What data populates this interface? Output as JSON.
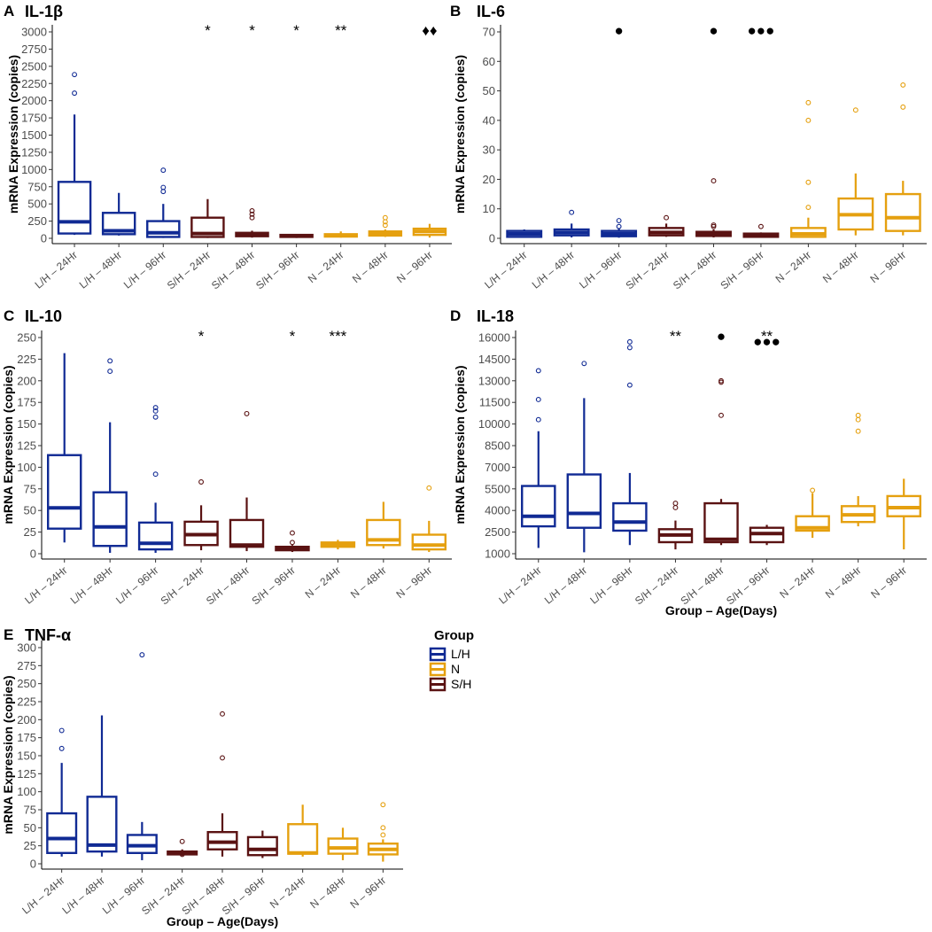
{
  "colors": {
    "L/H": "#102a94",
    "N": "#e5a00f",
    "S/H": "#5a1212"
  },
  "legend": {
    "title": "Group",
    "items": [
      {
        "label": "L/H",
        "group": "L/H"
      },
      {
        "label": "N",
        "group": "N"
      },
      {
        "label": "S/H",
        "group": "S/H"
      }
    ]
  },
  "chart_data": [
    {
      "type": "box",
      "letter": "A",
      "title": "IL-1β",
      "ylabel": "mRNA Expression (copies)",
      "xlabel": "",
      "ylim": [
        0,
        3000
      ],
      "yticks": [
        0,
        250,
        500,
        750,
        1000,
        1250,
        1500,
        1750,
        2000,
        2250,
        2500,
        2750,
        3000
      ],
      "categories": [
        "L/H – 24Hr",
        "L/H – 48Hr",
        "L/H – 96Hr",
        "S/H – 24Hr",
        "S/H – 48Hr",
        "S/H – 96Hr",
        "N – 24Hr",
        "N – 48Hr",
        "N – 96Hr"
      ],
      "groups": [
        "L/H",
        "L/H",
        "L/H",
        "S/H",
        "S/H",
        "S/H",
        "N",
        "N",
        "N"
      ],
      "boxes": [
        {
          "min": 50,
          "q1": 70,
          "median": 240,
          "q3": 820,
          "max": 1800,
          "outliers": [
            2110,
            2380
          ]
        },
        {
          "min": 40,
          "q1": 60,
          "median": 110,
          "q3": 370,
          "max": 660,
          "outliers": []
        },
        {
          "min": 5,
          "q1": 20,
          "median": 80,
          "q3": 250,
          "max": 500,
          "outliers": [
            680,
            740,
            990
          ]
        },
        {
          "min": 5,
          "q1": 20,
          "median": 70,
          "q3": 300,
          "max": 570,
          "outliers": []
        },
        {
          "min": 10,
          "q1": 30,
          "median": 50,
          "q3": 80,
          "max": 110,
          "outliers": [
            300,
            350,
            400
          ]
        },
        {
          "min": 5,
          "q1": 20,
          "median": 35,
          "q3": 50,
          "max": 60,
          "outliers": []
        },
        {
          "min": 10,
          "q1": 25,
          "median": 40,
          "q3": 60,
          "max": 100,
          "outliers": []
        },
        {
          "min": 20,
          "q1": 40,
          "median": 70,
          "q3": 100,
          "max": 130,
          "outliers": [
            190,
            240,
            300
          ]
        },
        {
          "min": 10,
          "q1": 50,
          "median": 100,
          "q3": 140,
          "max": 210,
          "outliers": []
        }
      ],
      "annotations": [
        {
          "index": 3,
          "text": "*"
        },
        {
          "index": 4,
          "text": "*"
        },
        {
          "index": 5,
          "text": "*"
        },
        {
          "index": 6,
          "text": "**"
        },
        {
          "index": 8,
          "text": "♦♦"
        }
      ]
    },
    {
      "type": "box",
      "letter": "B",
      "title": "IL-6",
      "ylabel": "mRNA Expression (copies)",
      "xlabel": "",
      "ylim": [
        0,
        70
      ],
      "yticks": [
        0,
        10,
        20,
        30,
        40,
        50,
        60,
        70
      ],
      "categories": [
        "L/H – 24Hr",
        "L/H – 48Hr",
        "L/H – 96Hr",
        "S/H – 24Hr",
        "S/H – 48Hr",
        "S/H – 96Hr",
        "N – 24Hr",
        "N – 48Hr",
        "N – 96Hr"
      ],
      "groups": [
        "L/H",
        "L/H",
        "L/H",
        "S/H",
        "S/H",
        "S/H",
        "N",
        "N",
        "N"
      ],
      "boxes": [
        {
          "min": 0.2,
          "q1": 0.5,
          "median": 1.5,
          "q3": 2.5,
          "max": 3,
          "outliers": []
        },
        {
          "min": 0.3,
          "q1": 1,
          "median": 2,
          "q3": 3,
          "max": 5,
          "outliers": [
            8.8
          ]
        },
        {
          "min": 0.2,
          "q1": 0.7,
          "median": 1.5,
          "q3": 2.5,
          "max": 3.5,
          "outliers": [
            4,
            6
          ]
        },
        {
          "min": 0.5,
          "q1": 1,
          "median": 2,
          "q3": 3.5,
          "max": 5,
          "outliers": [
            7
          ]
        },
        {
          "min": 0.3,
          "q1": 0.8,
          "median": 1.5,
          "q3": 2.2,
          "max": 3,
          "outliers": [
            4,
            4.5,
            19.5
          ]
        },
        {
          "min": 0.2,
          "q1": 0.5,
          "median": 1,
          "q3": 1.6,
          "max": 2,
          "outliers": [
            4
          ]
        },
        {
          "min": 0.2,
          "q1": 0.5,
          "median": 1.5,
          "q3": 3.5,
          "max": 7,
          "outliers": [
            10.5,
            19,
            40,
            46
          ]
        },
        {
          "min": 1,
          "q1": 3,
          "median": 8,
          "q3": 13.5,
          "max": 22,
          "outliers": [
            43.5
          ]
        },
        {
          "min": 1,
          "q1": 2.5,
          "median": 7,
          "q3": 15,
          "max": 19.5,
          "outliers": [
            44.5,
            52
          ]
        }
      ],
      "annotations": [
        {
          "index": 2,
          "text": "●"
        },
        {
          "index": 4,
          "text": "●"
        },
        {
          "index": 5,
          "text": "●●●"
        }
      ]
    },
    {
      "type": "box",
      "letter": "C",
      "title": "IL-10",
      "ylabel": "mRNA Expression (copies)",
      "xlabel": "",
      "ylim": [
        0,
        250
      ],
      "yticks": [
        0,
        25,
        50,
        75,
        100,
        125,
        150,
        175,
        200,
        225,
        250
      ],
      "categories": [
        "L/H – 24Hr",
        "L/H – 48Hr",
        "L/H – 96Hr",
        "S/H – 24Hr",
        "S/H – 48Hr",
        "S/H – 96Hr",
        "N – 24Hr",
        "N – 48Hr",
        "N – 96Hr"
      ],
      "groups": [
        "L/H",
        "L/H",
        "L/H",
        "S/H",
        "S/H",
        "S/H",
        "N",
        "N",
        "N"
      ],
      "boxes": [
        {
          "min": 13,
          "q1": 29,
          "median": 53,
          "q3": 114,
          "max": 232,
          "outliers": []
        },
        {
          "min": 1,
          "q1": 9,
          "median": 31,
          "q3": 71,
          "max": 152,
          "outliers": [
            211,
            223
          ]
        },
        {
          "min": 1,
          "q1": 5,
          "median": 12,
          "q3": 36,
          "max": 59,
          "outliers": [
            92,
            158,
            165,
            169
          ]
        },
        {
          "min": 4,
          "q1": 10,
          "median": 22,
          "q3": 37,
          "max": 56,
          "outliers": [
            83
          ]
        },
        {
          "min": 3,
          "q1": 8,
          "median": 10,
          "q3": 39,
          "max": 65,
          "outliers": [
            162
          ]
        },
        {
          "min": 2,
          "q1": 4,
          "median": 6,
          "q3": 8,
          "max": 10,
          "outliers": [
            13,
            24
          ]
        },
        {
          "min": 5,
          "q1": 8,
          "median": 10,
          "q3": 13,
          "max": 16,
          "outliers": []
        },
        {
          "min": 6,
          "q1": 10,
          "median": 16,
          "q3": 39,
          "max": 60,
          "outliers": []
        },
        {
          "min": 2,
          "q1": 5,
          "median": 10,
          "q3": 22,
          "max": 38,
          "outliers": [
            76
          ]
        }
      ],
      "annotations": [
        {
          "index": 3,
          "text": "*"
        },
        {
          "index": 5,
          "text": "*"
        },
        {
          "index": 6,
          "text": "***"
        }
      ]
    },
    {
      "type": "box",
      "letter": "D",
      "title": "IL-18",
      "ylabel": "mRNA Expression (copies)",
      "xlabel": "Group – Age(Days)",
      "ylim": [
        1000,
        16000
      ],
      "yticks": [
        1000,
        2500,
        4000,
        5500,
        7000,
        8500,
        10000,
        11500,
        13000,
        14500,
        16000
      ],
      "categories": [
        "L/H – 24Hr",
        "L/H – 48Hr",
        "L/H – 96Hr",
        "S/H – 24Hr",
        "S/H – 48Hr",
        "S/H – 96Hr",
        "N – 24Hr",
        "N – 48Hr",
        "N – 96Hr"
      ],
      "groups": [
        "L/H",
        "L/H",
        "L/H",
        "S/H",
        "S/H",
        "S/H",
        "N",
        "N",
        "N"
      ],
      "boxes": [
        {
          "min": 1400,
          "q1": 2900,
          "median": 3600,
          "q3": 5700,
          "max": 9500,
          "outliers": [
            10300,
            11700,
            13700
          ]
        },
        {
          "min": 1100,
          "q1": 2800,
          "median": 3800,
          "q3": 6500,
          "max": 11800,
          "outliers": [
            14200
          ]
        },
        {
          "min": 1600,
          "q1": 2600,
          "median": 3200,
          "q3": 4500,
          "max": 6600,
          "outliers": [
            12700,
            15300,
            15700
          ]
        },
        {
          "min": 1300,
          "q1": 1800,
          "median": 2300,
          "q3": 2700,
          "max": 3300,
          "outliers": [
            4200,
            4500
          ]
        },
        {
          "min": 1600,
          "q1": 1800,
          "median": 2000,
          "q3": 4500,
          "max": 4800,
          "outliers": [
            10600,
            12900,
            13000
          ]
        },
        {
          "min": 1600,
          "q1": 1800,
          "median": 2400,
          "q3": 2800,
          "max": 3000,
          "outliers": []
        },
        {
          "min": 2100,
          "q1": 2600,
          "median": 2800,
          "q3": 3600,
          "max": 5200,
          "outliers": [
            5400
          ]
        },
        {
          "min": 2900,
          "q1": 3200,
          "median": 3700,
          "q3": 4300,
          "max": 5000,
          "outliers": [
            9500,
            10300,
            10600
          ]
        },
        {
          "min": 1300,
          "q1": 3600,
          "median": 4200,
          "q3": 5000,
          "max": 6200,
          "outliers": []
        }
      ],
      "annotations": [
        {
          "index": 3,
          "text": "**"
        },
        {
          "index": 4,
          "text": "●"
        },
        {
          "index": 5,
          "text": "**"
        },
        {
          "index": 5,
          "text": "●●●",
          "offset": 1
        }
      ]
    },
    {
      "type": "box",
      "letter": "E",
      "title": "TNF-α",
      "ylabel": "mRNA Expression (copies)",
      "xlabel": "Group – Age(Days)",
      "ylim": [
        0,
        300
      ],
      "yticks": [
        0,
        25,
        50,
        75,
        100,
        125,
        150,
        175,
        200,
        225,
        250,
        275,
        300
      ],
      "categories": [
        "L/H – 24Hr",
        "L/H – 48Hr",
        "L/H – 96Hr",
        "S/H – 24Hr",
        "S/H – 48Hr",
        "S/H – 96Hr",
        "N – 24Hr",
        "N – 48Hr",
        "N – 96Hr"
      ],
      "groups": [
        "L/H",
        "L/H",
        "L/H",
        "S/H",
        "S/H",
        "S/H",
        "N",
        "N",
        "N"
      ],
      "boxes": [
        {
          "min": 10,
          "q1": 15,
          "median": 35,
          "q3": 70,
          "max": 140,
          "outliers": [
            160,
            185
          ]
        },
        {
          "min": 10,
          "q1": 17,
          "median": 26,
          "q3": 93,
          "max": 206,
          "outliers": []
        },
        {
          "min": 5,
          "q1": 15,
          "median": 25,
          "q3": 40,
          "max": 58,
          "outliers": [
            290
          ]
        },
        {
          "min": 11,
          "q1": 13,
          "median": 15,
          "q3": 17,
          "max": 20,
          "outliers": [
            13,
            31
          ]
        },
        {
          "min": 10,
          "q1": 20,
          "median": 30,
          "q3": 44,
          "max": 70,
          "outliers": [
            147,
            208
          ]
        },
        {
          "min": 8,
          "q1": 12,
          "median": 20,
          "q3": 37,
          "max": 46,
          "outliers": []
        },
        {
          "min": 10,
          "q1": 14,
          "median": 15,
          "q3": 55,
          "max": 82,
          "outliers": []
        },
        {
          "min": 5,
          "q1": 14,
          "median": 22,
          "q3": 35,
          "max": 50,
          "outliers": []
        },
        {
          "min": 3,
          "q1": 13,
          "median": 20,
          "q3": 28,
          "max": 34,
          "outliers": [
            40,
            50,
            82
          ]
        }
      ],
      "annotations": []
    }
  ]
}
